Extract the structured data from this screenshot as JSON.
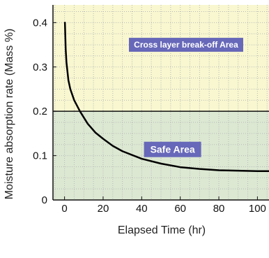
{
  "chart_data": {
    "type": "line",
    "xlabel": "Elapsed Time (hr)",
    "ylabel": "Moisture absorption rate (Mass %)",
    "xlim": [
      -6,
      106
    ],
    "ylim": [
      0,
      0.44
    ],
    "x_ticks": [
      0,
      20,
      40,
      60,
      80,
      100
    ],
    "x_tick_labels": [
      "0",
      "20",
      "40",
      "60",
      "80",
      "100"
    ],
    "y_ticks": [
      0,
      0.1,
      0.2,
      0.3,
      0.4
    ],
    "y_tick_labels": [
      "0",
      "0.1",
      "0.2",
      "0.3",
      "0.4"
    ],
    "grid": true,
    "regions": [
      {
        "label": "Cross layer break-off Area",
        "y_from": 0.2,
        "y_to": 0.44,
        "fill": "#f8f7d0",
        "label_x": 63,
        "label_y": 0.35
      },
      {
        "label": "Safe Area",
        "y_from": 0,
        "y_to": 0.2,
        "fill": "#dce8d2",
        "label_x": 56,
        "label_y": 0.114
      }
    ],
    "threshold_y": 0.2,
    "series": [
      {
        "values": [
          {
            "x": 0.2,
            "y": 0.4
          },
          {
            "x": 0.6,
            "y": 0.34
          },
          {
            "x": 1,
            "y": 0.31
          },
          {
            "x": 2,
            "y": 0.27
          },
          {
            "x": 3,
            "y": 0.25
          },
          {
            "x": 5,
            "y": 0.225
          },
          {
            "x": 8,
            "y": 0.2
          },
          {
            "x": 12,
            "y": 0.172
          },
          {
            "x": 16,
            "y": 0.152
          },
          {
            "x": 20,
            "y": 0.138
          },
          {
            "x": 25,
            "y": 0.122
          },
          {
            "x": 30,
            "y": 0.11
          },
          {
            "x": 40,
            "y": 0.093
          },
          {
            "x": 50,
            "y": 0.082
          },
          {
            "x": 60,
            "y": 0.074
          },
          {
            "x": 70,
            "y": 0.07
          },
          {
            "x": 80,
            "y": 0.067
          },
          {
            "x": 90,
            "y": 0.066
          },
          {
            "x": 100,
            "y": 0.065
          },
          {
            "x": 106,
            "y": 0.065
          }
        ],
        "color": "#000000"
      }
    ],
    "colors": {
      "axis": "#111111",
      "grid": "#b7b7b7",
      "label_box": "#6768b9",
      "label_text": "#ffffff",
      "curve": "#000000"
    }
  }
}
